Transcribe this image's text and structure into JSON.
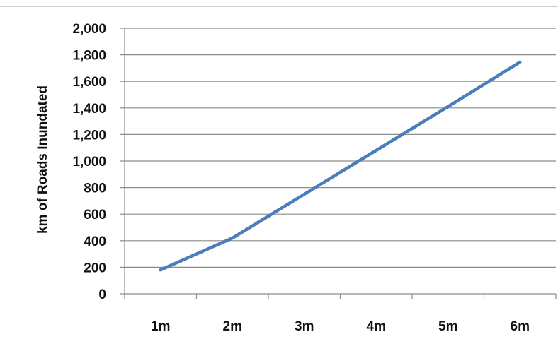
{
  "chart_data": {
    "type": "line",
    "title": "",
    "xlabel": "",
    "ylabel": "km of Roads Inundated",
    "categories": [
      "1m",
      "2m",
      "3m",
      "4m",
      "5m",
      "6m"
    ],
    "series": [
      {
        "values": [
          180,
          420,
          750,
          1080,
          1410,
          1745
        ]
      }
    ],
    "y_ticks": [
      "0",
      "200",
      "400",
      "600",
      "800",
      "1,000",
      "1,200",
      "1,400",
      "1,600",
      "1,800",
      "2,000"
    ],
    "ylim": [
      0,
      2000
    ],
    "grid": true,
    "legend": "none",
    "colors": {
      "series": "#4a7ebb",
      "grid": "#8c8c8c",
      "axis": "#8c8c8c"
    }
  }
}
